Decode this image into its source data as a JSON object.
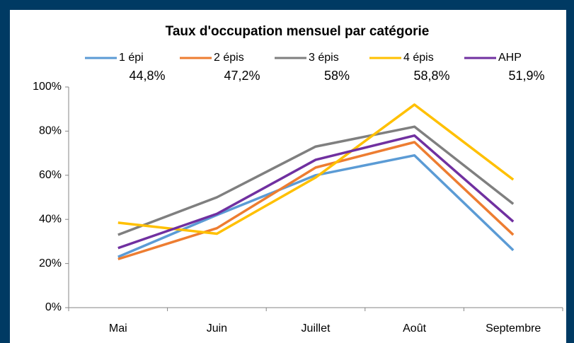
{
  "chart_data": {
    "type": "line",
    "title": "Taux d'occupation mensuel par catégorie",
    "categories": [
      "Mai",
      "Juin",
      "Juillet",
      "Août",
      "Septembre"
    ],
    "series": [
      {
        "name": "1 épi",
        "color": "#5b9bd5",
        "values": [
          23,
          42,
          60,
          69,
          26
        ]
      },
      {
        "name": "2 épis",
        "color": "#ed7d31",
        "values": [
          22,
          36,
          63.5,
          75,
          33
        ]
      },
      {
        "name": "3 épis",
        "color": "#7f7f7f",
        "values": [
          33,
          50,
          73,
          82,
          47
        ]
      },
      {
        "name": "4 épis",
        "color": "#ffc000",
        "values": [
          38.5,
          33.5,
          59,
          92,
          58
        ]
      },
      {
        "name": "AHP",
        "color": "#7030a0",
        "values": [
          27,
          42.5,
          67,
          78,
          39
        ]
      }
    ],
    "legend_values": [
      "44,8%",
      "47,2%",
      "58%",
      "58,8%",
      "51,9%"
    ],
    "ylim": [
      0,
      100
    ],
    "yticks": [
      {
        "value": 0,
        "label": "0%"
      },
      {
        "value": 20,
        "label": "20%"
      },
      {
        "value": 40,
        "label": "40%"
      },
      {
        "value": 60,
        "label": "60%"
      },
      {
        "value": 80,
        "label": "80%"
      },
      {
        "value": 100,
        "label": "100%"
      }
    ],
    "grid": false,
    "legend": "top"
  }
}
